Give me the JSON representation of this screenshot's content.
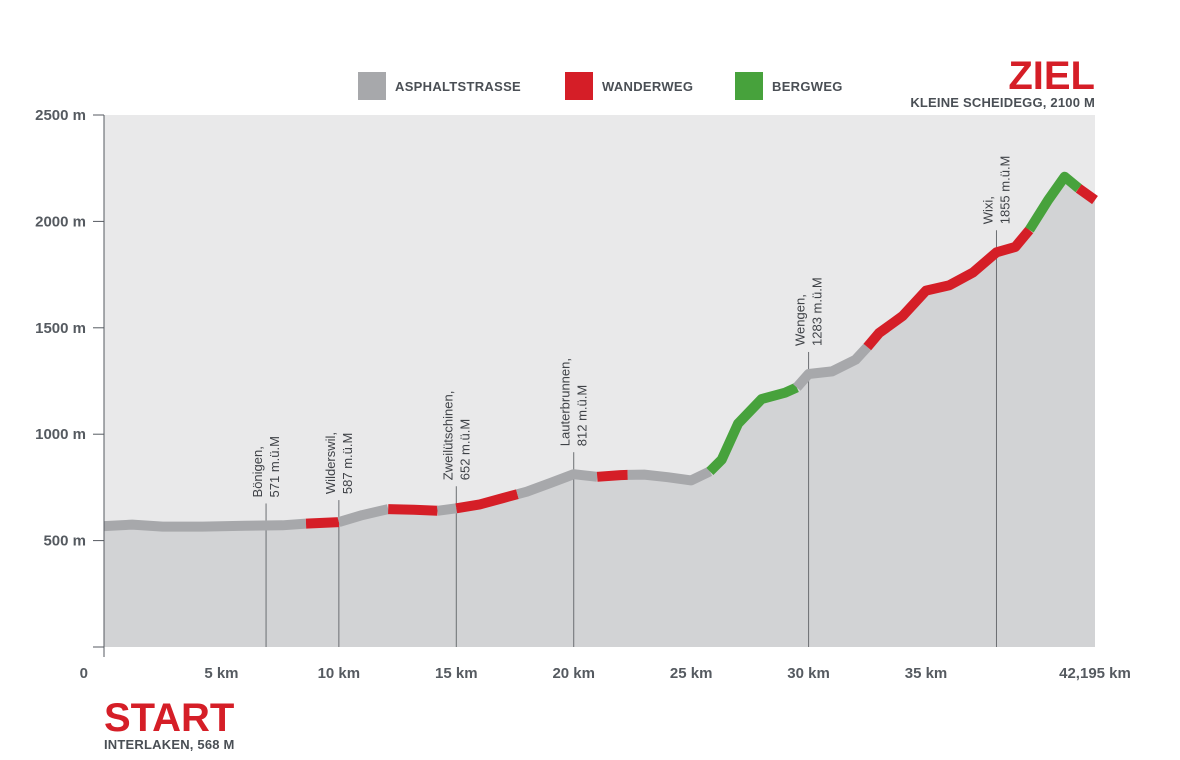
{
  "chart_data": {
    "type": "area",
    "x_unit": "km",
    "y_unit": "m",
    "xlim": [
      0,
      42.195
    ],
    "ylim": [
      0,
      2500
    ],
    "x_ticks": [
      {
        "value": 0,
        "label": "0"
      },
      {
        "value": 5,
        "label": "5 km"
      },
      {
        "value": 10,
        "label": "10 km"
      },
      {
        "value": 15,
        "label": "15 km"
      },
      {
        "value": 20,
        "label": "20 km"
      },
      {
        "value": 25,
        "label": "25 km"
      },
      {
        "value": 30,
        "label": "30 km"
      },
      {
        "value": 35,
        "label": "35 km"
      },
      {
        "value": 42.195,
        "label": "42,195 km"
      }
    ],
    "y_ticks": [
      {
        "value": 500,
        "label": "500 m"
      },
      {
        "value": 1000,
        "label": "1000 m"
      },
      {
        "value": 1500,
        "label": "1500 m"
      },
      {
        "value": 2000,
        "label": "2000 m"
      },
      {
        "value": 2500,
        "label": "2500 m"
      }
    ],
    "profile": [
      {
        "x": 0,
        "y": 568
      },
      {
        "x": 1.2,
        "y": 575
      },
      {
        "x": 2.5,
        "y": 566
      },
      {
        "x": 4.2,
        "y": 566
      },
      {
        "x": 6.0,
        "y": 570
      },
      {
        "x": 7.6,
        "y": 572
      },
      {
        "x": 8.6,
        "y": 580
      },
      {
        "x": 10.0,
        "y": 587
      },
      {
        "x": 11.0,
        "y": 620
      },
      {
        "x": 12.1,
        "y": 648
      },
      {
        "x": 13.2,
        "y": 645
      },
      {
        "x": 14.2,
        "y": 640
      },
      {
        "x": 15.0,
        "y": 652
      },
      {
        "x": 16.0,
        "y": 670
      },
      {
        "x": 17.0,
        "y": 700
      },
      {
        "x": 18.0,
        "y": 730
      },
      {
        "x": 19.0,
        "y": 770
      },
      {
        "x": 20.0,
        "y": 812
      },
      {
        "x": 21.0,
        "y": 800
      },
      {
        "x": 22.0,
        "y": 808
      },
      {
        "x": 23.0,
        "y": 810
      },
      {
        "x": 24.0,
        "y": 798
      },
      {
        "x": 25.0,
        "y": 783
      },
      {
        "x": 25.8,
        "y": 825
      },
      {
        "x": 26.3,
        "y": 880
      },
      {
        "x": 27.0,
        "y": 1050
      },
      {
        "x": 28.0,
        "y": 1165
      },
      {
        "x": 29.0,
        "y": 1195
      },
      {
        "x": 29.5,
        "y": 1220
      },
      {
        "x": 30.0,
        "y": 1283
      },
      {
        "x": 31.0,
        "y": 1295
      },
      {
        "x": 32.0,
        "y": 1350
      },
      {
        "x": 32.5,
        "y": 1410
      },
      {
        "x": 33.0,
        "y": 1475
      },
      {
        "x": 34.0,
        "y": 1555
      },
      {
        "x": 35.0,
        "y": 1675
      },
      {
        "x": 36.0,
        "y": 1700
      },
      {
        "x": 37.0,
        "y": 1760
      },
      {
        "x": 38.0,
        "y": 1855
      },
      {
        "x": 38.8,
        "y": 1880
      },
      {
        "x": 39.4,
        "y": 1960
      },
      {
        "x": 40.2,
        "y": 2100
      },
      {
        "x": 40.9,
        "y": 2210
      },
      {
        "x": 41.5,
        "y": 2155
      },
      {
        "x": 42.195,
        "y": 2100
      }
    ],
    "segments": [
      {
        "type": "asphalt",
        "from": 0,
        "to": 8.6
      },
      {
        "type": "hiking",
        "from": 8.6,
        "to": 10.0
      },
      {
        "type": "asphalt",
        "from": 10.0,
        "to": 12.1
      },
      {
        "type": "hiking",
        "from": 12.1,
        "to": 14.2
      },
      {
        "type": "asphalt",
        "from": 14.2,
        "to": 15.0
      },
      {
        "type": "hiking",
        "from": 15.0,
        "to": 17.6
      },
      {
        "type": "asphalt",
        "from": 17.6,
        "to": 21.0
      },
      {
        "type": "hiking",
        "from": 21.0,
        "to": 22.3
      },
      {
        "type": "asphalt",
        "from": 22.3,
        "to": 25.8
      },
      {
        "type": "mountain",
        "from": 25.8,
        "to": 29.5
      },
      {
        "type": "asphalt",
        "from": 29.5,
        "to": 32.5
      },
      {
        "type": "hiking",
        "from": 32.5,
        "to": 39.4
      },
      {
        "type": "mountain",
        "from": 39.4,
        "to": 41.5
      },
      {
        "type": "hiking",
        "from": 41.5,
        "to": 42.195
      }
    ],
    "colors": {
      "asphalt": "#a7a8ab",
      "hiking": "#d51e27",
      "mountain": "#47a23c",
      "area": "#d2d3d5",
      "plot_bg": "#e9e9ea",
      "axis": "#555a60",
      "text": "#4a4f55"
    },
    "legend": [
      {
        "key": "asphalt",
        "label": "ASPHALTSTRASSE"
      },
      {
        "key": "hiking",
        "label": "WANDERWEG"
      },
      {
        "key": "mountain",
        "label": "BERGWEG"
      }
    ],
    "legend_position": "top-center",
    "grid": false,
    "locations": [
      {
        "name": "Bönigen,",
        "elev": "571 m.ü.M",
        "x": 6.9,
        "y": 571
      },
      {
        "name": "Wilderswil,",
        "elev": "587 m.ü.M",
        "x": 10.0,
        "y": 587
      },
      {
        "name": "Zweilütschinen,",
        "elev": "652 m.ü.M",
        "x": 15.0,
        "y": 652
      },
      {
        "name": "Lauterbrunnen,",
        "elev": "812 m.ü.M",
        "x": 20.0,
        "y": 812
      },
      {
        "name": "Wengen,",
        "elev": "1283 m.ü.M",
        "x": 30.0,
        "y": 1283
      },
      {
        "name": "Wixi,",
        "elev": "1855 m.ü.M",
        "x": 38.0,
        "y": 1855
      }
    ],
    "start": {
      "title": "START",
      "subtitle": "INTERLAKEN, 568 M"
    },
    "finish": {
      "title": "ZIEL",
      "subtitle": "KLEINE SCHEIDEGG, 2100 M"
    }
  }
}
